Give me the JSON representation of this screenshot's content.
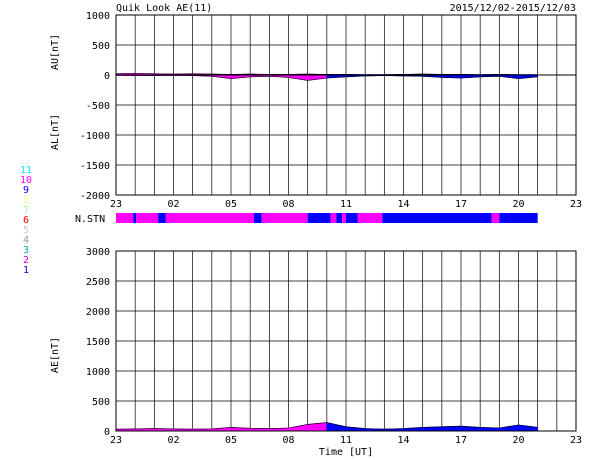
{
  "header": {
    "title": "Quik Look AE(11)",
    "date_range": "2015/12/02-2015/12/03"
  },
  "legend": {
    "items": [
      {
        "label": "11",
        "color": "#00e5ff"
      },
      {
        "label": "10",
        "color": "#ff00ff"
      },
      {
        "label": "9",
        "color": "#0000ff"
      },
      {
        "label": "8",
        "color": "#ffff99"
      },
      {
        "label": "7",
        "color": "#99ff99"
      },
      {
        "label": "6",
        "color": "#ff0000"
      },
      {
        "label": "5",
        "color": "#cccccc"
      },
      {
        "label": "4",
        "color": "#999999"
      },
      {
        "label": "3",
        "color": "#00aaaa"
      },
      {
        "label": "2",
        "color": "#cc00cc"
      },
      {
        "label": "1",
        "color": "#0000cc"
      }
    ]
  },
  "chart_data": [
    {
      "type": "area",
      "ylabel_top": "AU[nT]",
      "ylabel_bottom": "AL[nT]",
      "ylim": [
        -2000,
        1000
      ],
      "yticks": [
        "1000",
        "500",
        "0",
        "-500",
        "-1000",
        "-1500",
        "-2000"
      ],
      "xticks": [
        "23",
        "02",
        "05",
        "08",
        "11",
        "14",
        "17",
        "20",
        "23"
      ],
      "grid": true,
      "series": [
        {
          "key": "AU",
          "x": [
            0,
            1,
            2,
            3,
            4,
            5,
            6,
            7,
            8,
            9,
            10,
            11,
            12,
            13,
            14,
            15,
            16,
            17,
            18,
            19,
            20,
            21,
            22
          ],
          "values": [
            20,
            25,
            20,
            15,
            20,
            15,
            10,
            15,
            10,
            10,
            15,
            10,
            10,
            5,
            5,
            10,
            15,
            10,
            10,
            5,
            10,
            5,
            5
          ]
        },
        {
          "key": "AL",
          "x": [
            0,
            1,
            2,
            3,
            4,
            5,
            6,
            7,
            8,
            9,
            10,
            11,
            12,
            13,
            14,
            15,
            16,
            17,
            18,
            19,
            20,
            21,
            22
          ],
          "values": [
            -5,
            -10,
            -10,
            -5,
            -10,
            -20,
            -60,
            -30,
            -20,
            -40,
            -90,
            -50,
            -30,
            -15,
            -10,
            -15,
            -20,
            -40,
            -50,
            -30,
            -20,
            -60,
            -30
          ]
        }
      ],
      "series_colors": [
        "#ff00ff",
        "#0000ff"
      ],
      "color_change_x": 10.2
    },
    {
      "type": "bar",
      "ylabel": "N.STN",
      "segments": [
        {
          "start": 0,
          "end": 0.9,
          "count": 10
        },
        {
          "start": 0.9,
          "end": 1.05,
          "count": 9
        },
        {
          "start": 1.05,
          "end": 2.2,
          "count": 10
        },
        {
          "start": 2.2,
          "end": 2.6,
          "count": 9
        },
        {
          "start": 2.6,
          "end": 7.2,
          "count": 10
        },
        {
          "start": 7.2,
          "end": 7.6,
          "count": 9
        },
        {
          "start": 7.6,
          "end": 10.0,
          "count": 10
        },
        {
          "start": 10.0,
          "end": 11.2,
          "count": 9
        },
        {
          "start": 11.2,
          "end": 11.5,
          "count": 10
        },
        {
          "start": 11.5,
          "end": 11.8,
          "count": 9
        },
        {
          "start": 11.8,
          "end": 12.0,
          "count": 10
        },
        {
          "start": 12.0,
          "end": 12.6,
          "count": 9
        },
        {
          "start": 12.6,
          "end": 13.9,
          "count": 10
        },
        {
          "start": 13.9,
          "end": 19.6,
          "count": 9
        },
        {
          "start": 19.6,
          "end": 20.0,
          "count": 10
        },
        {
          "start": 20.0,
          "end": 22.0,
          "count": 9
        }
      ]
    },
    {
      "type": "area",
      "ylabel": "AE[nT]",
      "xlabel": "Time [UT]",
      "ylim": [
        0,
        3000
      ],
      "yticks": [
        "3000",
        "2500",
        "2000",
        "1500",
        "1000",
        "500",
        "0"
      ],
      "xticks": [
        "23",
        "02",
        "05",
        "08",
        "11",
        "14",
        "17",
        "20",
        "23"
      ],
      "grid": true,
      "series": [
        {
          "key": "AE",
          "x": [
            0,
            1,
            2,
            3,
            4,
            5,
            6,
            7,
            8,
            9,
            10,
            11,
            12,
            13,
            14,
            15,
            16,
            17,
            18,
            19,
            20,
            21,
            22
          ],
          "values": [
            30,
            35,
            40,
            35,
            30,
            35,
            60,
            45,
            40,
            50,
            110,
            140,
            70,
            40,
            30,
            40,
            60,
            70,
            80,
            60,
            50,
            100,
            60
          ]
        }
      ],
      "series_colors": [
        "#ff00ff",
        "#0000ff"
      ],
      "color_change_x": 10.2
    }
  ]
}
